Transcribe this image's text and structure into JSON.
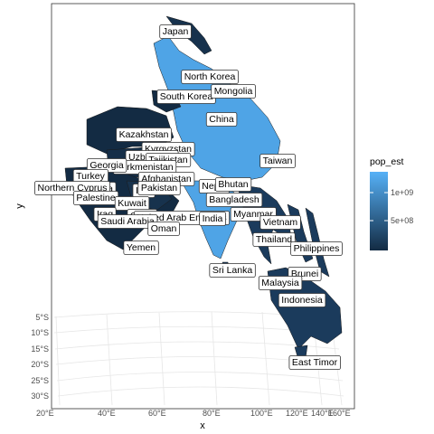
{
  "axes": {
    "xlabel": "x",
    "ylabel": "y",
    "x_ticks": [
      "20°E",
      "40°E",
      "60°E",
      "80°E",
      "100°E",
      "120°E",
      "140°E",
      "160°E"
    ],
    "y_ticks": [
      "5°S",
      "10°S",
      "15°S",
      "20°S",
      "25°S",
      "30°S"
    ]
  },
  "legend": {
    "title": "pop_est",
    "labels": [
      "1e+09",
      "5e+08"
    ],
    "low_color": "#132B43",
    "high_color": "#56B1F7",
    "placement": "right"
  },
  "labels": [
    "Japan",
    "North Korea",
    "South Korea",
    "Mongolia",
    "China",
    "Kazakhstan",
    "Kyrgyzstan",
    "Uzbekistan",
    "Tajikistan",
    "Turkmenistan",
    "Georgia",
    "Turkey",
    "Afghanistan",
    "Taiwan",
    "Nepal",
    "Bhutan",
    "Syria",
    "Iran",
    "Pakistan",
    "Northern Cyprus",
    "Palestine",
    "Kuwait",
    "Bangladesh",
    "Iraq",
    "Qatar",
    "United Arab Emirates",
    "India",
    "Myanmar",
    "Vietnam",
    "Saudi Arabia",
    "Oman",
    "Thailand",
    "Philippines",
    "Yemen",
    "Sri Lanka",
    "Brunei",
    "Malaysia",
    "Indonesia",
    "East Timor"
  ]
}
